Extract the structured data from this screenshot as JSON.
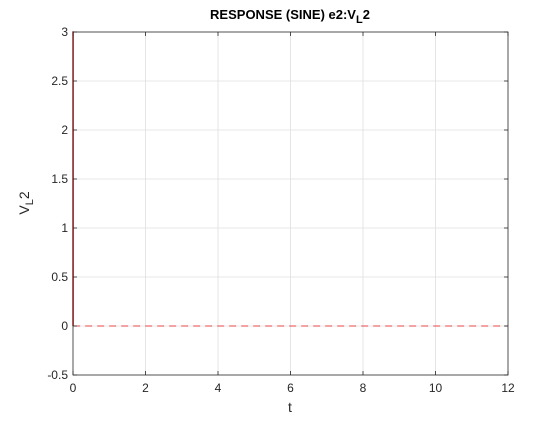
{
  "chart_data": {
    "type": "line",
    "title": "RESPONSE (SINE) e2:V",
    "title_subscript": "L",
    "title_suffix": "2",
    "xlabel": "t",
    "ylabel": "V",
    "ylabel_subscript": "L",
    "ylabel_suffix": "2",
    "xlim": [
      0,
      12
    ],
    "ylim": [
      -0.5,
      3
    ],
    "xticks": [
      0,
      2,
      4,
      6,
      8,
      10,
      12
    ],
    "yticks": [
      -0.5,
      0,
      0.5,
      1,
      1.5,
      2,
      2.5,
      3
    ],
    "xtick_labels": [
      "0",
      "2",
      "4",
      "6",
      "8",
      "10",
      "12"
    ],
    "ytick_labels": [
      "-0.5",
      "0",
      "0.5",
      "1",
      "1.5",
      "2",
      "2.5",
      "3"
    ],
    "grid": true,
    "series_color": "#e8474b",
    "series": [
      {
        "style": "solid",
        "x": [
          0,
          0.001,
          0.002,
          0.003,
          0.004,
          0.005
        ],
        "y": [
          0,
          3,
          3,
          3,
          3,
          0
        ]
      },
      {
        "style": "dashed",
        "x": [
          0.005,
          12
        ],
        "y": [
          0,
          0
        ]
      }
    ]
  }
}
